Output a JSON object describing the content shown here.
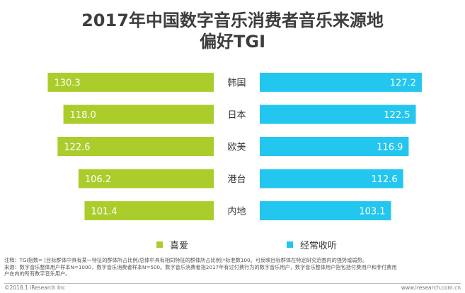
{
  "title_line1": "2017年中国数字音乐消费者音乐来源地",
  "title_line2": "偏好TGI",
  "chart_data": {
    "type": "bar",
    "title": "2017年中国数字音乐消费者音乐来源地偏好TGI",
    "categories": [
      "韩国",
      "日本",
      "欧美",
      "港台",
      "内地"
    ],
    "series": [
      {
        "name": "喜爱",
        "values": [
          130.3,
          118.0,
          122.6,
          106.2,
          101.4
        ],
        "color": "#aacd2c"
      },
      {
        "name": "经常收听",
        "values": [
          127.2,
          122.5,
          116.9,
          112.6,
          103.1
        ],
        "color": "#23c6ee"
      }
    ],
    "value_labels": [
      [
        "130.3",
        "118.0",
        "122.6",
        "106.2",
        "101.4"
      ],
      [
        "127.2",
        "122.5",
        "116.9",
        "112.6",
        "103.1"
      ]
    ],
    "xlabel": "",
    "ylabel": "",
    "legend_position": "bottom"
  },
  "legend": {
    "like": {
      "label": "喜爱",
      "color": "#aacd2c"
    },
    "listen": {
      "label": "经常收听",
      "color": "#23c6ee"
    }
  },
  "notes": [
    "注释：TGI指数= [目标群体中具有某一特征的群体所占比例/总体中具有相同特征的群体所占比例]*标准数100。可反映目标群体在特定研究范围内的强势或弱势。",
    "来源：数字音乐整体用户样本N=1000，数字音乐消费者样本N=500。数字音乐消费者指2017年有过付费行为的数字音乐用户，数字音乐整体用户指包括付费用户和非付费用",
    "户在内的所有数字音乐用户。"
  ],
  "footer": {
    "left": "©2018.1 iResearch Inc",
    "right": "www.iresearch.com.cn"
  }
}
